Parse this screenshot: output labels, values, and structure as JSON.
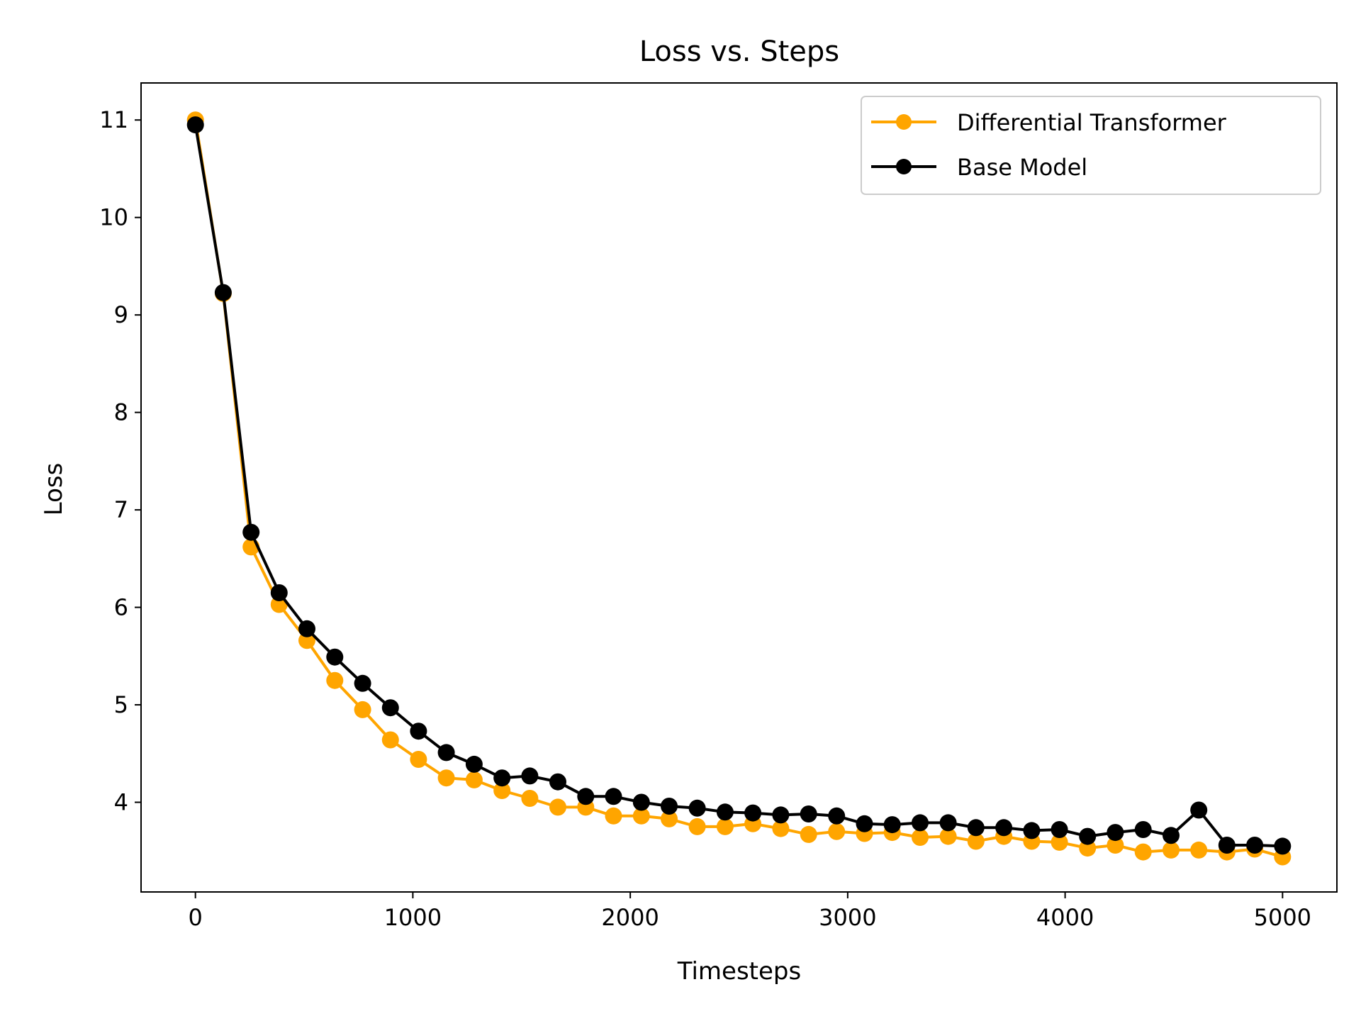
{
  "chart_data": {
    "type": "line",
    "title": "Loss vs. Steps",
    "xlabel": "Timesteps",
    "ylabel": "Loss",
    "xlim": [
      -250,
      5250
    ],
    "ylim": [
      3.08,
      11.38
    ],
    "xticks": [
      0,
      1000,
      2000,
      3000,
      4000,
      5000
    ],
    "yticks": [
      4,
      5,
      6,
      7,
      8,
      9,
      10,
      11
    ],
    "grid": false,
    "legend_position": "top-right",
    "x": [
      0,
      128,
      256,
      385,
      513,
      641,
      769,
      897,
      1026,
      1154,
      1282,
      1410,
      1538,
      1667,
      1795,
      1923,
      2051,
      2179,
      2308,
      2436,
      2564,
      2692,
      2820,
      2949,
      3077,
      3205,
      3333,
      3462,
      3590,
      3718,
      3846,
      3974,
      4103,
      4231,
      4359,
      4487,
      4615,
      4744,
      4872,
      5000
    ],
    "series": [
      {
        "name": "Differential Transformer",
        "color": "#FFA500",
        "values": [
          11.0,
          9.22,
          6.62,
          6.03,
          5.66,
          5.25,
          4.95,
          4.64,
          4.44,
          4.25,
          4.23,
          4.12,
          4.04,
          3.95,
          3.95,
          3.86,
          3.86,
          3.83,
          3.75,
          3.75,
          3.78,
          3.73,
          3.67,
          3.7,
          3.68,
          3.69,
          3.64,
          3.65,
          3.6,
          3.65,
          3.6,
          3.59,
          3.53,
          3.56,
          3.49,
          3.51,
          3.51,
          3.49,
          3.52,
          3.44
        ]
      },
      {
        "name": "Base Model",
        "color": "#000000",
        "values": [
          10.95,
          9.23,
          6.77,
          6.15,
          5.78,
          5.49,
          5.22,
          4.97,
          4.73,
          4.51,
          4.39,
          4.25,
          4.27,
          4.21,
          4.06,
          4.06,
          4.0,
          3.96,
          3.94,
          3.9,
          3.89,
          3.87,
          3.88,
          3.86,
          3.78,
          3.77,
          3.79,
          3.79,
          3.74,
          3.74,
          3.71,
          3.72,
          3.65,
          3.69,
          3.72,
          3.66,
          3.92,
          3.56,
          3.56,
          3.55
        ]
      }
    ]
  }
}
